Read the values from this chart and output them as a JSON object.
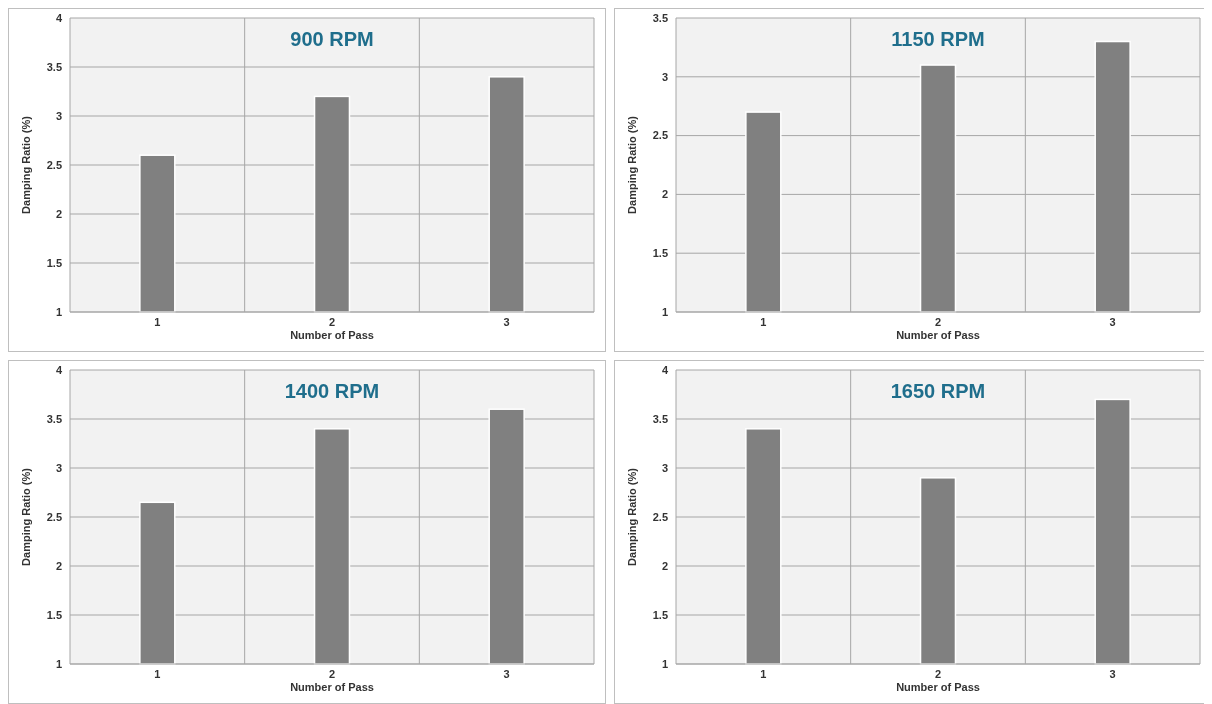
{
  "chart_data": [
    {
      "type": "bar",
      "title": "900 RPM",
      "xlabel": "Number of Pass",
      "ylabel": "Damping Ratio (%)",
      "categories": [
        "1",
        "2",
        "3"
      ],
      "values": [
        2.6,
        3.2,
        3.4
      ],
      "color": "#808080",
      "ylim": [
        1,
        4
      ],
      "yticks": [
        1,
        1.5,
        2,
        2.5,
        3,
        3.5,
        4
      ],
      "grid": true
    },
    {
      "type": "bar",
      "title": "1150 RPM",
      "xlabel": "Number of Pass",
      "ylabel": "Damping Ratio (%)",
      "categories": [
        "1",
        "2",
        "3"
      ],
      "values": [
        2.7,
        3.1,
        3.3
      ],
      "color": "#808080",
      "ylim": [
        1,
        3.5
      ],
      "yticks": [
        1,
        1.5,
        2,
        2.5,
        3,
        3.5
      ],
      "grid": true
    },
    {
      "type": "bar",
      "title": "1400 RPM",
      "xlabel": "Number of Pass",
      "ylabel": "Damping Ratio (%)",
      "categories": [
        "1",
        "2",
        "3"
      ],
      "values": [
        2.65,
        3.4,
        3.6
      ],
      "color": "#808080",
      "ylim": [
        1,
        4
      ],
      "yticks": [
        1,
        1.5,
        2,
        2.5,
        3,
        3.5,
        4
      ],
      "grid": true
    },
    {
      "type": "bar",
      "title": "1650 RPM",
      "xlabel": "Number of Pass",
      "ylabel": "Damping Ratio (%)",
      "categories": [
        "1",
        "2",
        "3"
      ],
      "values": [
        3.4,
        2.9,
        3.7
      ],
      "color": "#808080",
      "ylim": [
        1,
        4
      ],
      "yticks": [
        1,
        1.5,
        2,
        2.5,
        3,
        3.5,
        4
      ],
      "grid": true
    }
  ]
}
